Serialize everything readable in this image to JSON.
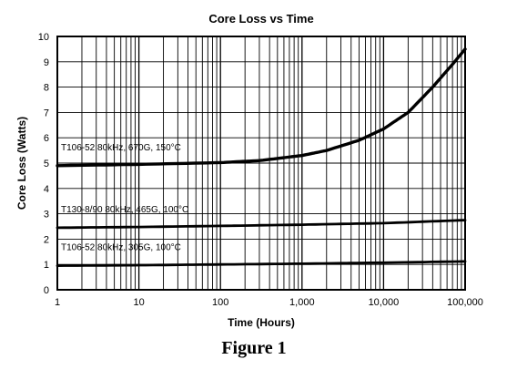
{
  "chart_data": {
    "type": "line",
    "title": "Core Loss vs Time",
    "xlabel": "Time (Hours)",
    "ylabel": "Core Loss (Watts)",
    "xscale": "log",
    "xlim": [
      1,
      100000
    ],
    "ylim": [
      0,
      10
    ],
    "grid": true,
    "x_tick_labels": [
      "1",
      "10",
      "100",
      "1,000",
      "10,000",
      "100,000"
    ],
    "y_tick_labels": [
      "0",
      "1",
      "2",
      "3",
      "4",
      "5",
      "6",
      "7",
      "8",
      "9",
      "10"
    ],
    "series": [
      {
        "name": "T106-52 80kHz, 670G, 150°C",
        "x": [
          1,
          10,
          100,
          300,
          1000,
          2000,
          5000,
          10000,
          20000,
          40000,
          70000,
          100000
        ],
        "y": [
          4.9,
          4.95,
          5.02,
          5.1,
          5.3,
          5.5,
          5.9,
          6.35,
          7.0,
          8.0,
          8.9,
          9.5
        ]
      },
      {
        "name": "T130-8/90 80kHz, 465G, 100°C",
        "x": [
          1,
          10,
          100,
          1000,
          10000,
          100000
        ],
        "y": [
          2.45,
          2.48,
          2.52,
          2.57,
          2.63,
          2.75
        ]
      },
      {
        "name": "T106-52 80kHz, 305G, 100°C",
        "x": [
          1,
          10,
          100,
          1000,
          10000,
          100000
        ],
        "y": [
          0.95,
          0.97,
          1.0,
          1.03,
          1.07,
          1.12
        ]
      }
    ]
  },
  "caption": "Figure 1"
}
